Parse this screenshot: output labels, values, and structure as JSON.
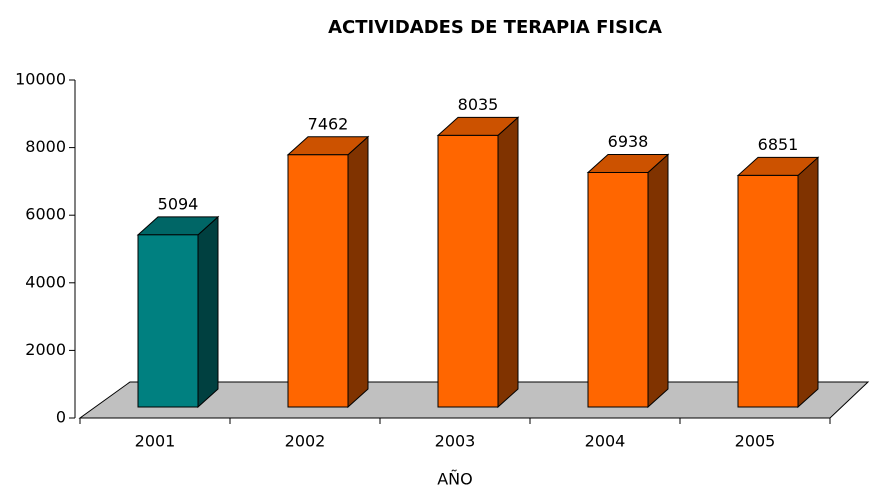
{
  "chart_data": {
    "type": "bar3d",
    "title": "ACTIVIDADES DE TERAPIA FISICA",
    "x_label": "AÑO",
    "categories": [
      "2001",
      "2002",
      "2003",
      "2004",
      "2005"
    ],
    "values": [
      5094,
      7462,
      8035,
      6938,
      6851
    ],
    "colors": [
      "#008080",
      "#ff6600",
      "#ff6600",
      "#ff6600",
      "#ff6600"
    ],
    "ylim": [
      0,
      10000
    ],
    "yticks": [
      0,
      2000,
      4000,
      6000,
      8000,
      10000
    ]
  }
}
